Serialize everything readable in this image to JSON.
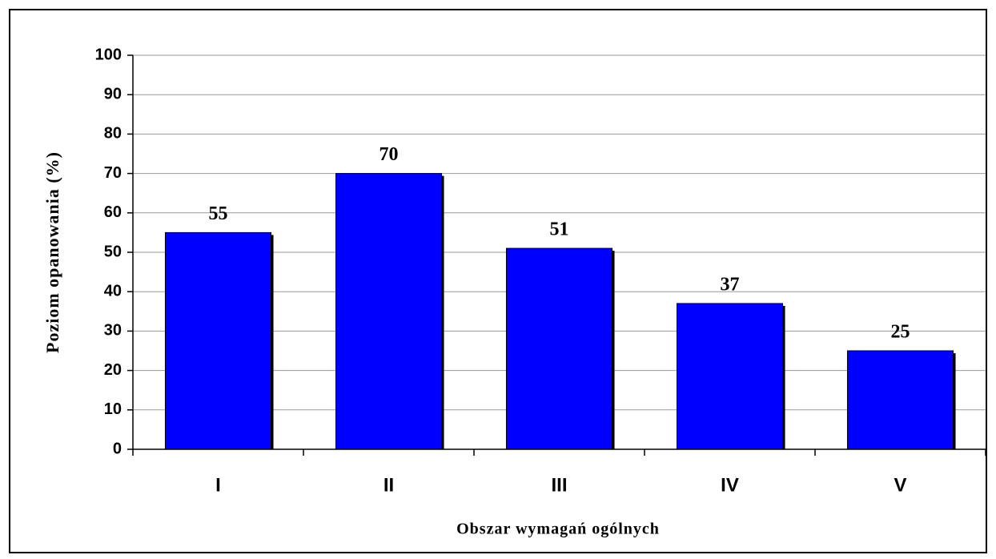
{
  "chart_data": {
    "type": "bar",
    "categories": [
      "I",
      "II",
      "III",
      "IV",
      "V"
    ],
    "values": [
      55,
      70,
      51,
      37,
      25
    ],
    "color": "#0000ff",
    "xlabel": "Obszar wymagań ogólnych",
    "ylabel": "Poziom opanowania (%)",
    "ylim": [
      0,
      100
    ],
    "yticks": [
      0,
      10,
      20,
      30,
      40,
      50,
      60,
      70,
      80,
      90,
      100
    ],
    "grid": true
  }
}
